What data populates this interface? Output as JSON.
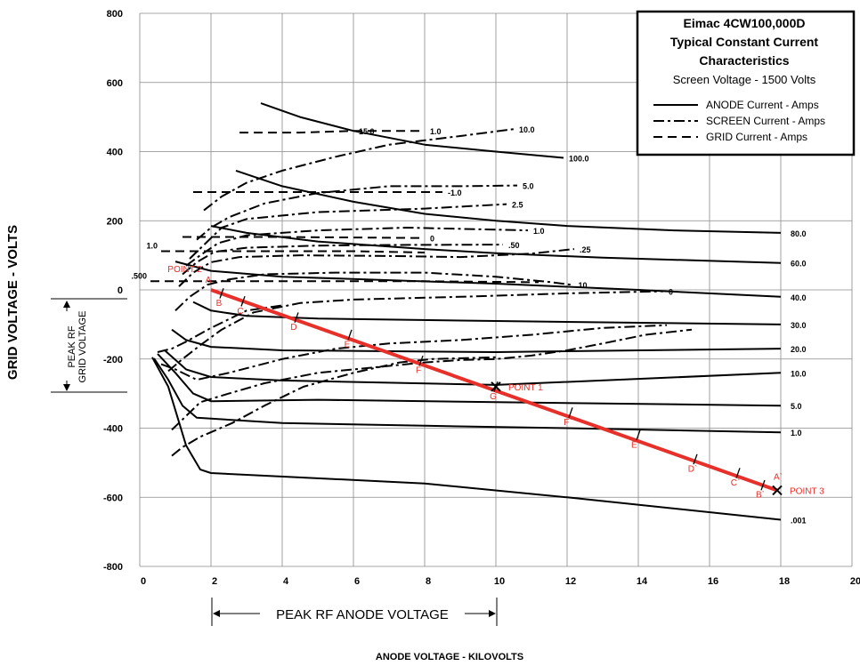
{
  "chart_data": {
    "type": "line",
    "title": "Eimac 4CW100,000D",
    "subtitle": "Typical Constant Current Characteristics",
    "screen_voltage_label": "Screen Voltage - 1500 Volts",
    "xlabel": "ANODE VOLTAGE - KILOVOLTS",
    "ylabel": "GRID VOLTAGE - VOLTS",
    "xlim": [
      0,
      20
    ],
    "ylim": [
      -800,
      800
    ],
    "x_ticks": [
      "0",
      "2",
      "4",
      "6",
      "8",
      "10",
      "12",
      "14",
      "16",
      "18",
      "20"
    ],
    "y_ticks": [
      "800",
      "600",
      "400",
      "200",
      "0",
      "-200",
      "-400",
      "-600",
      "-800"
    ],
    "grid": true,
    "legend_position": "top-right",
    "legend": [
      {
        "label": "ANODE Current - Amps",
        "style": "solid"
      },
      {
        "label": "SCREEN Current - Amps",
        "style": "dashdot"
      },
      {
        "label": "GRID Current - Amps",
        "style": "dashed"
      }
    ],
    "series": [
      {
        "name": "100.0",
        "kind": "anode",
        "points": [
          [
            3.4,
            540
          ],
          [
            4.5,
            500
          ],
          [
            6,
            460
          ],
          [
            8,
            420
          ],
          [
            10,
            400
          ],
          [
            11.9,
            382
          ]
        ]
      },
      {
        "name": "80.0",
        "kind": "anode",
        "points": [
          [
            2.7,
            345
          ],
          [
            4,
            300
          ],
          [
            6,
            255
          ],
          [
            8,
            220
          ],
          [
            10,
            200
          ],
          [
            12,
            185
          ],
          [
            15,
            172
          ],
          [
            18,
            165
          ]
        ]
      },
      {
        "name": "60.0",
        "kind": "anode",
        "points": [
          [
            2,
            185
          ],
          [
            3,
            165
          ],
          [
            5,
            140
          ],
          [
            8,
            118
          ],
          [
            10,
            106
          ],
          [
            13,
            93
          ],
          [
            18,
            78
          ]
        ]
      },
      {
        "name": "40.0",
        "kind": "anode",
        "points": [
          [
            1,
            82
          ],
          [
            2,
            55
          ],
          [
            4,
            38
          ],
          [
            7,
            28
          ],
          [
            10,
            18
          ],
          [
            14,
            0
          ],
          [
            18,
            -20
          ]
        ]
      },
      {
        "name": "30.0",
        "kind": "anode",
        "points": [
          [
            1.5,
            -35
          ],
          [
            2,
            -60
          ],
          [
            3,
            -75
          ],
          [
            5,
            -83
          ],
          [
            10,
            -90
          ],
          [
            18,
            -100
          ]
        ]
      },
      {
        "name": "20.0",
        "kind": "anode",
        "points": [
          [
            0.9,
            -115
          ],
          [
            1.3,
            -145
          ],
          [
            2,
            -165
          ],
          [
            4,
            -175
          ],
          [
            10,
            -180
          ],
          [
            18,
            -170
          ]
        ]
      },
      {
        "name": "10.0",
        "kind": "anode",
        "points": [
          [
            0.7,
            -175
          ],
          [
            1.3,
            -230
          ],
          [
            2,
            -252
          ],
          [
            4,
            -262
          ],
          [
            10,
            -275
          ],
          [
            18,
            -240
          ]
        ]
      },
      {
        "name": "5.0",
        "kind": "anode",
        "points": [
          [
            0.5,
            -185
          ],
          [
            1,
            -240
          ],
          [
            1.5,
            -300
          ],
          [
            2,
            -322
          ],
          [
            5,
            -318
          ],
          [
            10,
            -325
          ],
          [
            18,
            -335
          ]
        ]
      },
      {
        "name": "1.0",
        "kind": "anode",
        "points": [
          [
            0.4,
            -198
          ],
          [
            0.8,
            -260
          ],
          [
            1.2,
            -335
          ],
          [
            1.6,
            -370
          ],
          [
            4,
            -385
          ],
          [
            8,
            -393
          ],
          [
            12,
            -400
          ],
          [
            18,
            -412
          ]
        ]
      },
      {
        "name": ".001",
        "kind": "anode",
        "points": [
          [
            0.35,
            -195
          ],
          [
            0.8,
            -280
          ],
          [
            1.3,
            -450
          ],
          [
            1.7,
            -520
          ],
          [
            2,
            -530
          ],
          [
            8,
            -560
          ],
          [
            12,
            -600
          ],
          [
            18,
            -665
          ]
        ]
      },
      {
        "name": "15.0",
        "kind": "grid",
        "points": [
          [
            2.8,
            455
          ],
          [
            4.5,
            455
          ],
          [
            6,
            460
          ]
        ]
      },
      {
        "name": "1.0",
        "kind": "grid",
        "points": [
          [
            6,
            460
          ],
          [
            8,
            460
          ]
        ]
      },
      {
        "name": "-1.0",
        "kind": "grid",
        "points": [
          [
            1.5,
            283
          ],
          [
            4,
            283
          ],
          [
            8.5,
            283
          ]
        ]
      },
      {
        "name": "0",
        "kind": "grid",
        "points": [
          [
            1.2,
            153
          ],
          [
            4,
            153
          ],
          [
            8,
            150
          ]
        ]
      },
      {
        "name": "1.0",
        "kind": "grid",
        "points": [
          [
            0.6,
            112
          ],
          [
            3,
            112
          ],
          [
            6,
            112
          ],
          [
            8,
            108
          ]
        ]
      },
      {
        "name": ".500",
        "kind": "grid",
        "points": [
          [
            0.3,
            25
          ],
          [
            4,
            25
          ],
          [
            8,
            25
          ],
          [
            11.2,
            22
          ]
        ]
      },
      {
        "name": "10.0",
        "kind": "screen",
        "points": [
          [
            1.8,
            230
          ],
          [
            2.3,
            270
          ],
          [
            3,
            310
          ],
          [
            4,
            345
          ],
          [
            5.5,
            385
          ],
          [
            7,
            420
          ],
          [
            9,
            445
          ],
          [
            10.5,
            465
          ]
        ]
      },
      {
        "name": "5.0",
        "kind": "screen",
        "points": [
          [
            1.6,
            145
          ],
          [
            2,
            180
          ],
          [
            2.5,
            210
          ],
          [
            3.5,
            250
          ],
          [
            5,
            280
          ],
          [
            7,
            300
          ],
          [
            9,
            300
          ],
          [
            10.6,
            302
          ]
        ]
      },
      {
        "name": "2.5",
        "kind": "screen",
        "points": [
          [
            1.4,
            90
          ],
          [
            1.8,
            130
          ],
          [
            2.3,
            180
          ],
          [
            3,
            205
          ],
          [
            5,
            225
          ],
          [
            8,
            235
          ],
          [
            10.3,
            248
          ]
        ]
      },
      {
        "name": "1.0",
        "kind": "screen",
        "points": [
          [
            1.3,
            70
          ],
          [
            1.7,
            100
          ],
          [
            2.2,
            135
          ],
          [
            3,
            158
          ],
          [
            5,
            172
          ],
          [
            7.5,
            180
          ],
          [
            10.9,
            172
          ]
        ]
      },
      {
        "name": ".50",
        "kind": "screen",
        "points": [
          [
            1.2,
            45
          ],
          [
            1.6,
            80
          ],
          [
            2.1,
            110
          ],
          [
            3,
            122
          ],
          [
            5,
            128
          ],
          [
            7,
            130
          ],
          [
            10.2,
            131
          ]
        ]
      },
      {
        "name": ".25",
        "kind": "screen",
        "points": [
          [
            1.1,
            10
          ],
          [
            1.5,
            50
          ],
          [
            2,
            80
          ],
          [
            2.8,
            95
          ],
          [
            4.5,
            100
          ],
          [
            7,
            98
          ],
          [
            9,
            95
          ],
          [
            11,
            105
          ],
          [
            12.2,
            118
          ]
        ]
      },
      {
        "name": ".10",
        "kind": "screen",
        "points": [
          [
            1.0,
            -60
          ],
          [
            1.4,
            -20
          ],
          [
            1.9,
            15
          ],
          [
            2.5,
            30
          ],
          [
            3.5,
            45
          ],
          [
            5.5,
            50
          ],
          [
            8,
            50
          ],
          [
            10,
            38
          ],
          [
            11.5,
            23
          ],
          [
            12.1,
            15
          ]
        ]
      },
      {
        "name": "0",
        "kind": "screen",
        "points": [
          [
            0.8,
            -235
          ],
          [
            1.2,
            -200
          ],
          [
            1.7,
            -160
          ],
          [
            2.3,
            -115
          ],
          [
            3.2,
            -65
          ],
          [
            4.5,
            -38
          ],
          [
            6,
            -28
          ],
          [
            9,
            -20
          ],
          [
            12,
            -10
          ],
          [
            14.7,
            -4
          ]
        ]
      },
      {
        "name": "",
        "kind": "screen",
        "points": [
          [
            0.5,
            -180
          ],
          [
            0.9,
            -170
          ],
          [
            1.3,
            -150
          ],
          [
            2,
            -110
          ],
          [
            3,
            -60
          ],
          [
            4,
            -45
          ]
        ]
      },
      {
        "name": "",
        "kind": "screen",
        "points": [
          [
            0.6,
            -215
          ],
          [
            1,
            -230
          ],
          [
            1.6,
            -260
          ],
          [
            2.5,
            -240
          ],
          [
            4,
            -200
          ],
          [
            5.5,
            -170
          ],
          [
            7,
            -155
          ],
          [
            9,
            -145
          ],
          [
            11,
            -130
          ],
          [
            13,
            -110
          ],
          [
            14.8,
            -102
          ]
        ]
      },
      {
        "name": "",
        "kind": "screen",
        "points": [
          [
            0.9,
            -405
          ],
          [
            1.2,
            -375
          ],
          [
            1.7,
            -325
          ],
          [
            2.5,
            -300
          ],
          [
            3.5,
            -270
          ],
          [
            5,
            -240
          ],
          [
            6.5,
            -225
          ],
          [
            8,
            -210
          ],
          [
            9,
            -203
          ],
          [
            10,
            -200
          ],
          [
            11,
            -190
          ],
          [
            12,
            -175
          ],
          [
            13,
            -155
          ],
          [
            14.2,
            -130
          ],
          [
            15.5,
            -115
          ]
        ]
      },
      {
        "name": "",
        "kind": "screen",
        "points": [
          [
            0.9,
            -480
          ],
          [
            1.2,
            -455
          ],
          [
            1.7,
            -425
          ],
          [
            2.6,
            -385
          ],
          [
            3.5,
            -335
          ],
          [
            4.6,
            -280
          ],
          [
            6,
            -240
          ],
          [
            7.3,
            -210
          ],
          [
            8.2,
            -200
          ],
          [
            10,
            -195
          ]
        ]
      }
    ],
    "operating_line": {
      "points": [
        [
          2,
          0
        ],
        [
          17.9,
          -580
        ]
      ]
    },
    "operating_points": [
      {
        "label": "POINT 2",
        "x": 2,
        "y": 0
      },
      {
        "label": "POINT 1",
        "x": 10,
        "y": -280
      },
      {
        "label": "POINT 3",
        "x": 17.9,
        "y": -580
      }
    ],
    "line_markers": [
      {
        "label": "A",
        "x": 2.0,
        "y": 0
      },
      {
        "label": "B",
        "x": 2.3,
        "y": -10
      },
      {
        "label": "C",
        "x": 2.9,
        "y": -33
      },
      {
        "label": "D",
        "x": 4.4,
        "y": -80
      },
      {
        "label": "E",
        "x": 5.9,
        "y": -130
      },
      {
        "label": "F",
        "x": 7.9,
        "y": -205
      },
      {
        "label": "G",
        "x": 10.0,
        "y": -280
      },
      {
        "label": "F`",
        "x": 12.1,
        "y": -355
      },
      {
        "label": "E`",
        "x": 14.0,
        "y": -420
      },
      {
        "label": "D`",
        "x": 15.6,
        "y": -490
      },
      {
        "label": "C`",
        "x": 16.8,
        "y": -530
      },
      {
        "label": "B`",
        "x": 17.5,
        "y": -565
      },
      {
        "label": "A`",
        "x": 17.9,
        "y": -580
      }
    ],
    "annotations": {
      "peak_rf_grid": "PEAK RF",
      "peak_rf_grid_2": "GRID VOLTAGE",
      "peak_rf_anode": "PEAK RF ANODE VOLTAGE"
    }
  }
}
